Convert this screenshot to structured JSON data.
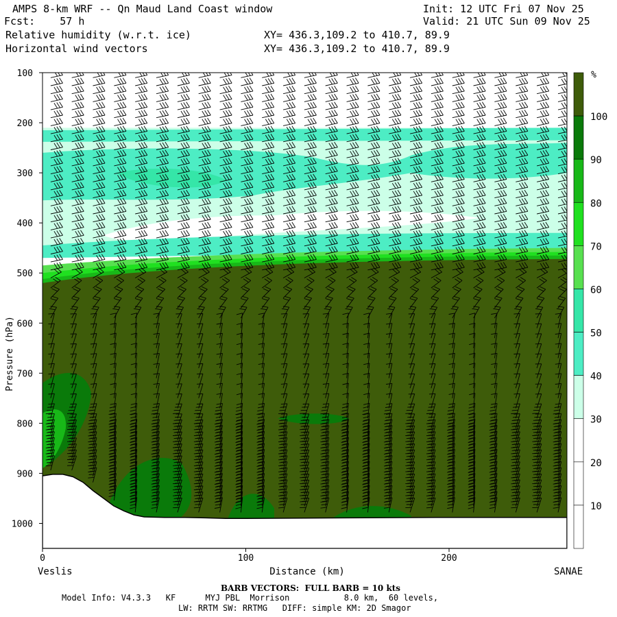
{
  "header": {
    "line1_left": "AMPS 8-km WRF -- Qn Maud Land Coast window",
    "line1_right": "Init: 12 UTC Fri 07 Nov 25",
    "line2_left": "Fcst:    57 h",
    "line2_right": "Valid: 21 UTC Sun 09 Nov 25",
    "line3_left": "Relative humidity (w.r.t. ice)",
    "line3_mid": "XY= 436.3,109.2 to 410.7, 89.9",
    "line4_left": "Horizontal wind vectors",
    "line4_mid": "XY= 436.3,109.2 to 410.7, 89.9"
  },
  "footer": {
    "barb_note": "BARB VECTORS:  FULL BARB = 10 kts",
    "model_info_1": "Model Info: V4.3.3   KF      MYJ PBL  Morrison           8.0 km,  60 levels,",
    "model_info_2": "LW: RRTM SW: RRTMG   DIFF: simple KM: 2D Smagor"
  },
  "colors": {
    "c0_30": "#ffffff",
    "c30_40": "#ccffe8",
    "c40_50": "#4dedc4",
    "c50_60": "#35e6a8",
    "c60_70": "#58e050",
    "c70_80": "#20e020",
    "c80_90": "#18b818",
    "c90_100": "#0a7a0a",
    "c100": "#3e5c0a",
    "terrain": "#ffffff"
  },
  "chart_data": {
    "type": "heatmap",
    "title": "Relative humidity (w.r.t. ice)",
    "overlay": "Horizontal wind vectors",
    "xlabel": "Distance (km)",
    "ylabel": "Pressure (hPa)",
    "xlim": [
      0,
      258
    ],
    "ylim": [
      1050,
      100
    ],
    "x_ticks": [
      0,
      100,
      200
    ],
    "y_ticks": [
      100,
      200,
      300,
      400,
      500,
      600,
      700,
      800,
      900,
      1000
    ],
    "x_endpoint_labels": [
      "Veslis",
      "SANAE"
    ],
    "colorbar": {
      "unit": "%",
      "levels": [
        10,
        20,
        30,
        40,
        50,
        60,
        70,
        80,
        90,
        100
      ],
      "colors": [
        "#ffffff",
        "#ffffff",
        "#ffffff",
        "#ccffe8",
        "#4dedc4",
        "#35e6a8",
        "#58e050",
        "#20e020",
        "#18b818",
        "#0a7a0a",
        "#3e5c0a"
      ]
    },
    "terrain_surface": {
      "x_km": [
        0,
        5,
        10,
        15,
        20,
        25,
        30,
        35,
        40,
        45,
        50,
        60,
        70,
        80,
        90,
        100,
        150,
        200,
        258
      ],
      "pressure_hPa": [
        905,
        902,
        902,
        907,
        918,
        935,
        950,
        965,
        975,
        983,
        987,
        988,
        988,
        989,
        990,
        990,
        989,
        988,
        988
      ]
    },
    "rh_layers": [
      {
        "range": "100-210 hPa",
        "rh": "<30"
      },
      {
        "range": "210-450 hPa",
        "rh": "30-50 with moist bands"
      },
      {
        "range": "450-520 hPa",
        "rh": "60-100 transition"
      },
      {
        "range": "520 hPa-surface",
        "rh": ">=100"
      }
    ]
  }
}
